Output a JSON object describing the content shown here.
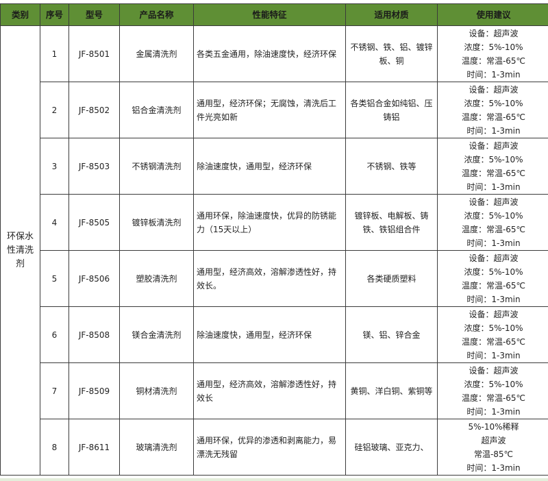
{
  "headers": [
    "类别",
    "序号",
    "型号",
    "产品名称",
    "性能特征",
    "适用材质",
    "使用建议"
  ],
  "category": "环保水性清洗剂",
  "rows": [
    {
      "no": "1",
      "model": "JF-8501",
      "name": "金属清洗剂",
      "feature": "各类五金通用，除油速度快，经济环保",
      "material": "不锈钢、铁、铝、镀锌板、铜",
      "usage": [
        "设备：超声波",
        "浓度：5%-10%",
        "温度：常温-65℃",
        "时间：1-3min"
      ]
    },
    {
      "no": "2",
      "model": "JF-8502",
      "name": "铝合金清洗剂",
      "feature": "通用型，经济环保；无腐蚀，清洗后工件光亮如新",
      "material": "各类铝合金如纯铝、压铸铝",
      "usage": [
        "设备：超声波",
        "浓度：5%-10%",
        "温度：常温-65℃",
        "时间：1-3min"
      ]
    },
    {
      "no": "3",
      "model": "JF-8503",
      "name": "不锈钢清洗剂",
      "feature": "除油速度快，通用型，经济环保",
      "material": "不锈钢、铁等",
      "usage": [
        "设备：超声波",
        "浓度：5%-10%",
        "温度：常温-65℃",
        "时间：1-3min"
      ]
    },
    {
      "no": "4",
      "model": "JF-8505",
      "name": "镀锌板清洗剂",
      "feature": "通用环保，除油速度快，优异的防锈能力（15天以上）",
      "material": "镀锌板、电解板、铸铁、铁铝组合件",
      "usage": [
        "设备：超声波",
        "浓度：5%-10%",
        "温度：常温-65℃",
        "时间：1-3min"
      ]
    },
    {
      "no": "5",
      "model": "JF-8506",
      "name": "塑胶清洗剂",
      "feature": "通用型，经济高效，溶解渗透性好，持效长。",
      "material": "各类硬质塑料",
      "usage": [
        "设备：超声波",
        "浓度：5%-10%",
        "温度：常温-65℃",
        "时间：1-3min"
      ]
    },
    {
      "no": "6",
      "model": "JF-8508",
      "name": "镁合金清洗剂",
      "feature": "除油速度快，通用型，经济环保",
      "material": "镁、铝、锌合金",
      "usage": [
        "设备：超声波",
        "浓度：5%-10%",
        "温度：常温-65℃",
        "时间：1-3min"
      ]
    },
    {
      "no": "7",
      "model": "JF-8509",
      "name": "铜材清洗剂",
      "feature": "通用型，经济高效，溶解渗透性好，持效长",
      "material": "黄铜、洋白铜、紫铜等",
      "usage": [
        "设备：超声波",
        "浓度：5%-10%",
        "温度：常温-65℃",
        "时间：1-3min"
      ]
    },
    {
      "no": "8",
      "model": "JF-8611",
      "name": "玻璃清洗剂",
      "feature": "通用环保，优异的渗透和剥离能力，易漂洗无残留",
      "material": "硅铝玻璃、亚克力、",
      "usage": [
        "5%-10%稀释",
        "超声波",
        "常温-85℃",
        "时间：1-3min"
      ]
    }
  ],
  "colors": {
    "header_bg": "#5f8f35"
  }
}
